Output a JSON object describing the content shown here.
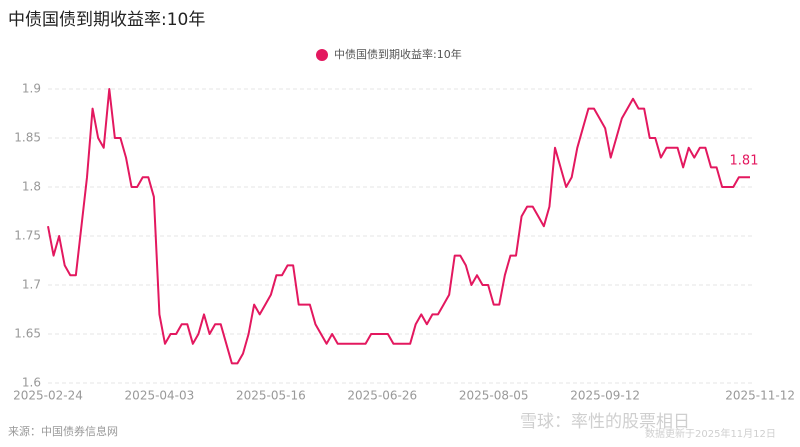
{
  "chart_data": {
    "type": "line",
    "title": "中债国债到期收益率:10年",
    "source": "来源：中国债券信息网",
    "watermark": "雪球：率性的股票相日",
    "update_note": "数据更新于2025年11月12日",
    "categories": [
      "2025-02-24",
      null,
      null,
      null,
      null,
      null,
      null,
      null,
      null,
      null,
      null,
      null,
      null,
      null,
      null,
      null,
      null,
      null,
      null,
      null,
      "2025-04-03",
      null,
      null,
      null,
      null,
      null,
      null,
      null,
      null,
      null,
      null,
      null,
      null,
      null,
      null,
      null,
      null,
      null,
      null,
      null,
      "2025-05-16",
      null,
      null,
      null,
      null,
      null,
      null,
      null,
      null,
      null,
      null,
      null,
      null,
      null,
      null,
      null,
      null,
      null,
      null,
      null,
      "2025-06-26",
      null,
      null,
      null,
      null,
      null,
      null,
      null,
      null,
      null,
      null,
      null,
      null,
      null,
      null,
      null,
      null,
      null,
      null,
      null,
      "2025-08-05",
      null,
      null,
      null,
      null,
      null,
      null,
      null,
      null,
      null,
      null,
      null,
      null,
      null,
      null,
      null,
      null,
      null,
      null,
      null,
      "2025-09-12",
      null,
      null,
      null,
      null,
      null,
      null,
      null,
      null,
      null,
      null,
      null,
      null,
      null,
      null,
      null,
      null,
      null,
      null,
      null,
      null,
      null,
      null,
      null,
      null,
      null,
      "2025-11-12"
    ],
    "series": [
      {
        "name": "中债国债到期收益率:10年",
        "color": "#e3185f",
        "values": [
          1.76,
          1.73,
          1.75,
          1.72,
          1.71,
          1.71,
          1.76,
          1.81,
          1.88,
          1.85,
          1.84,
          1.9,
          1.85,
          1.85,
          1.83,
          1.8,
          1.8,
          1.81,
          1.81,
          1.79,
          1.67,
          1.64,
          1.65,
          1.65,
          1.66,
          1.66,
          1.64,
          1.65,
          1.67,
          1.65,
          1.66,
          1.66,
          1.64,
          1.62,
          1.62,
          1.63,
          1.65,
          1.68,
          1.67,
          1.68,
          1.69,
          1.71,
          1.71,
          1.72,
          1.72,
          1.68,
          1.68,
          1.68,
          1.66,
          1.65,
          1.64,
          1.65,
          1.64,
          1.64,
          1.64,
          1.64,
          1.64,
          1.64,
          1.65,
          1.65,
          1.65,
          1.65,
          1.64,
          1.64,
          1.64,
          1.64,
          1.66,
          1.67,
          1.66,
          1.67,
          1.67,
          1.68,
          1.69,
          1.73,
          1.73,
          1.72,
          1.7,
          1.71,
          1.7,
          1.7,
          1.68,
          1.68,
          1.71,
          1.73,
          1.73,
          1.77,
          1.78,
          1.78,
          1.77,
          1.76,
          1.78,
          1.84,
          1.82,
          1.8,
          1.81,
          1.84,
          1.86,
          1.88,
          1.88,
          1.87,
          1.86,
          1.83,
          1.85,
          1.87,
          1.88,
          1.89,
          1.88,
          1.88,
          1.85,
          1.85,
          1.83,
          1.84,
          1.84,
          1.84,
          1.82,
          1.84,
          1.83,
          1.84,
          1.84,
          1.82,
          1.82,
          1.8,
          1.8,
          1.8,
          1.81,
          1.81,
          1.81
        ]
      }
    ],
    "ylim": [
      1.6,
      1.9
    ],
    "yticks": [
      1.6,
      1.65,
      1.7,
      1.75,
      1.8,
      1.85,
      1.9
    ],
    "grid": true
  }
}
